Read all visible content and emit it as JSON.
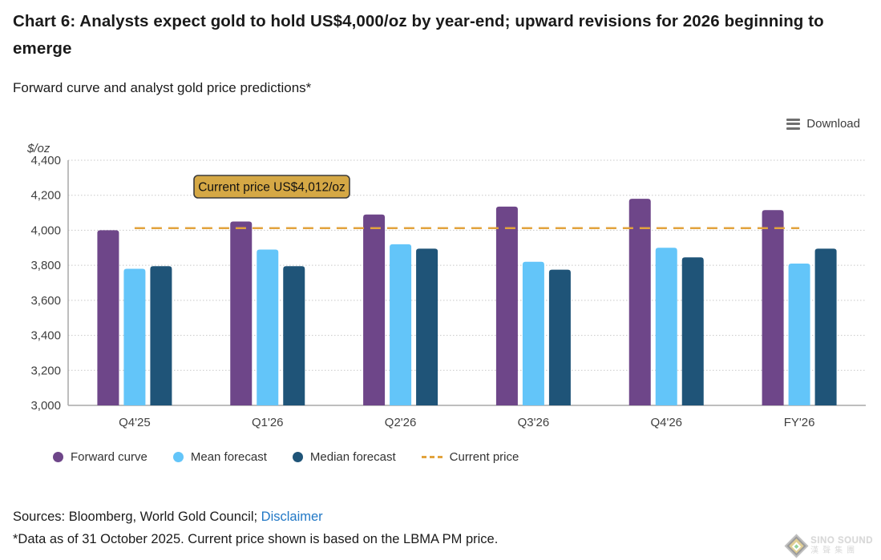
{
  "header": {
    "title": "Chart 6: Analysts expect gold to hold US$4,000/oz by year-end; upward revisions for 2026 beginning to emerge",
    "subtitle": "Forward curve and analyst gold price predictions*"
  },
  "toolbar": {
    "download_label": "Download"
  },
  "chart_data": {
    "type": "bar",
    "title": "Forward curve and analyst gold price predictions*",
    "unit_label": "$/oz",
    "categories": [
      "Q4'25",
      "Q1'26",
      "Q2'26",
      "Q3'26",
      "Q4'26",
      "FY'26"
    ],
    "series": [
      {
        "name": "Forward curve",
        "color": "#6E4689",
        "values": [
          4000,
          4050,
          4090,
          4135,
          4180,
          4115
        ]
      },
      {
        "name": "Mean forecast",
        "color": "#63C5F9",
        "values": [
          3780,
          3890,
          3920,
          3820,
          3900,
          3810
        ]
      },
      {
        "name": "Median forecast",
        "color": "#1F5478",
        "values": [
          3795,
          3795,
          3895,
          3775,
          3845,
          3895
        ]
      }
    ],
    "current_price": {
      "name": "Current price",
      "value": 4012,
      "color": "#E2A33D",
      "annotation": "Current price US$4,012/oz",
      "annotation_bg": "#D5A845",
      "annotation_border": "#3B3B3B"
    },
    "ylim": [
      3000,
      4400
    ],
    "ytick_step": 200,
    "grid": true,
    "legend_position": "bottom"
  },
  "footer": {
    "sources_prefix": "Sources: Bloomberg, World Gold Council; ",
    "disclaimer_link": "Disclaimer",
    "footnote": "*Data as of 31 October 2025. Current price shown is based on the LBMA PM price."
  },
  "watermark": {
    "line1": "SINO SOUND",
    "line2": "漢聲集團"
  }
}
